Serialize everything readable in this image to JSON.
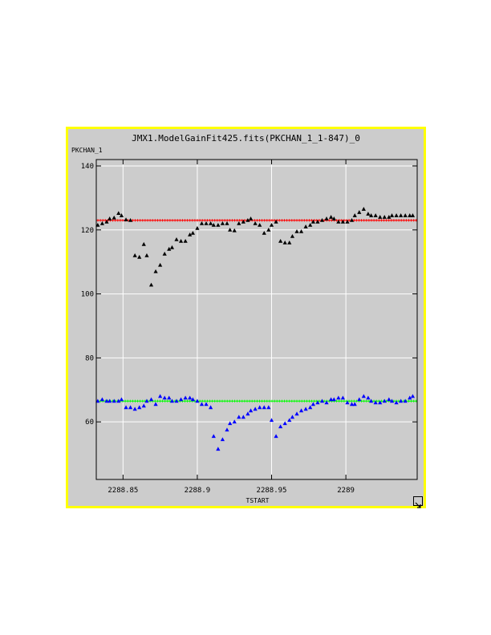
{
  "chart_data": {
    "type": "scatter",
    "title": "JMX1.ModelGainFit425.fits(PKCHAN_1_1-847)_0",
    "xlabel": "TSTART",
    "ylabel": "PKCHAN_1",
    "xlim": [
      2288.832,
      2289.048
    ],
    "ylim": [
      42,
      142
    ],
    "xticks": [
      2288.85,
      2288.9,
      2288.95,
      2289
    ],
    "xtick_labels": [
      "2288.85",
      "2288.9",
      "2288.95",
      "2289"
    ],
    "yticks": [
      60,
      80,
      100,
      120,
      140
    ],
    "ytick_labels": [
      "60",
      "80",
      "100",
      "120",
      "140"
    ],
    "grid": true,
    "colors": {
      "background": "#cccccc",
      "border": "#ffff00",
      "grid": "#ffffff",
      "fit_upper": "#ff0000",
      "fit_lower": "#00ff00",
      "data_upper": "#000000",
      "data_lower": "#0000ff"
    },
    "series": [
      {
        "marker": "triangle",
        "color": "#000000",
        "x": [
          2288.833,
          2288.836,
          2288.839,
          2288.841,
          2288.844,
          2288.847,
          2288.849,
          2288.852,
          2288.855,
          2288.858,
          2288.861,
          2288.864,
          2288.866,
          2288.869,
          2288.872,
          2288.875,
          2288.878,
          2288.881,
          2288.883,
          2288.886,
          2288.889,
          2288.892,
          2288.895,
          2288.897,
          2288.9,
          2288.903,
          2288.906,
          2288.909,
          2288.911,
          2288.914,
          2288.917,
          2288.92,
          2288.922,
          2288.925,
          2288.928,
          2288.931,
          2288.934,
          2288.936,
          2288.939,
          2288.942,
          2288.945,
          2288.948,
          2288.95,
          2288.953,
          2288.956,
          2288.959,
          2288.962,
          2288.964,
          2288.967,
          2288.97,
          2288.973,
          2288.976,
          2288.978,
          2288.981,
          2288.984,
          2288.987,
          2288.99,
          2288.992,
          2288.995,
          2288.998,
          2289.001,
          2289.004,
          2289.006,
          2289.009,
          2289.012,
          2289.015,
          2289.017,
          2289.02,
          2289.023,
          2289.026,
          2289.029,
          2289.031,
          2289.034,
          2289.037,
          2289.04,
          2289.043,
          2289.045
        ],
        "y": [
          121.5,
          122,
          122.5,
          123.5,
          123.8,
          125.2,
          124.5,
          123.2,
          123,
          112,
          111.5,
          115.5,
          112,
          102.8,
          107,
          109,
          112.5,
          114,
          114.5,
          117,
          116.5,
          116.5,
          118.5,
          119,
          120.5,
          122,
          122,
          122,
          121.5,
          121.5,
          122,
          122,
          120,
          119.8,
          122,
          122.5,
          123,
          123.5,
          122,
          121.5,
          119,
          120,
          121.5,
          122.5,
          116.5,
          116,
          116,
          118,
          119.5,
          119.5,
          121,
          121.5,
          122.5,
          122.5,
          123,
          123.5,
          124,
          123.5,
          122.5,
          122.5,
          122.5,
          123,
          124.5,
          125.5,
          126.5,
          125,
          124.5,
          124.5,
          124,
          124,
          124,
          124.5,
          124.5,
          124.5,
          124.5,
          124.5,
          124.5
        ]
      },
      {
        "marker": "triangle",
        "color": "#0000ff",
        "x": [
          2288.833,
          2288.836,
          2288.839,
          2288.841,
          2288.844,
          2288.847,
          2288.849,
          2288.852,
          2288.855,
          2288.858,
          2288.861,
          2288.864,
          2288.866,
          2288.869,
          2288.872,
          2288.875,
          2288.878,
          2288.881,
          2288.883,
          2288.886,
          2288.889,
          2288.892,
          2288.895,
          2288.897,
          2288.9,
          2288.903,
          2288.906,
          2288.909,
          2288.911,
          2288.914,
          2288.917,
          2288.92,
          2288.922,
          2288.925,
          2288.928,
          2288.931,
          2288.934,
          2288.936,
          2288.939,
          2288.942,
          2288.945,
          2288.948,
          2288.95,
          2288.953,
          2288.956,
          2288.959,
          2288.962,
          2288.964,
          2288.967,
          2288.97,
          2288.973,
          2288.976,
          2288.978,
          2288.981,
          2288.984,
          2288.987,
          2288.99,
          2288.992,
          2288.995,
          2288.998,
          2289.001,
          2289.004,
          2289.006,
          2289.009,
          2289.012,
          2289.015,
          2289.017,
          2289.02,
          2289.023,
          2289.026,
          2289.029,
          2289.031,
          2289.034,
          2289.037,
          2289.04,
          2289.043,
          2289.045
        ],
        "y": [
          66.5,
          67,
          66.5,
          66.5,
          66.5,
          66.5,
          67,
          64.5,
          64.5,
          64,
          64.5,
          65,
          66.5,
          67,
          65.5,
          68,
          67.5,
          67.5,
          66.5,
          66.5,
          67,
          67.5,
          67.5,
          67,
          66.5,
          65.5,
          65.5,
          64.5,
          55.5,
          51.5,
          54.5,
          57.5,
          59.5,
          60,
          61.5,
          61.5,
          62.5,
          63.5,
          64,
          64.5,
          64.5,
          64.5,
          60.5,
          55.5,
          58.5,
          59.5,
          60.5,
          61.5,
          62.5,
          63.5,
          64,
          64.5,
          65.5,
          66,
          66.5,
          66,
          67,
          67,
          67.5,
          67.5,
          66,
          65.5,
          65.5,
          67,
          68,
          67.5,
          66.5,
          66,
          66,
          66.5,
          67,
          66.5,
          66,
          66.5,
          66.5,
          67.5,
          68
        ]
      }
    ],
    "fit_lines": [
      {
        "color": "#ff0000",
        "marker": "plus",
        "y": 123
      },
      {
        "color": "#00ff00",
        "marker": "plus",
        "y": 66.5
      }
    ]
  }
}
